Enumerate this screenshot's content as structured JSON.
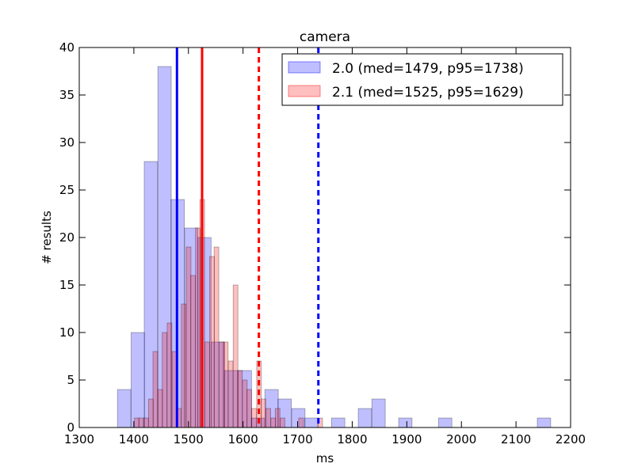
{
  "chart_data": {
    "type": "histogram",
    "title": "camera",
    "xlabel": "ms",
    "ylabel": "# results",
    "xlim": [
      1300,
      2200
    ],
    "ylim": [
      0,
      40
    ],
    "x_ticks": [
      1300,
      1400,
      1500,
      1600,
      1700,
      1800,
      1900,
      2000,
      2100,
      2200
    ],
    "y_ticks": [
      0,
      5,
      10,
      15,
      20,
      25,
      30,
      35,
      40
    ],
    "grid": false,
    "legend_position": "top-right",
    "series": [
      {
        "name": "2.0 (med=1479, p95=1738)",
        "color": "#0000ff",
        "bin_width": 24.5,
        "bins": [
          {
            "x0": 1370,
            "count": 4
          },
          {
            "x0": 1395,
            "count": 10
          },
          {
            "x0": 1419,
            "count": 28
          },
          {
            "x0": 1444,
            "count": 38
          },
          {
            "x0": 1468,
            "count": 24
          },
          {
            "x0": 1493,
            "count": 21
          },
          {
            "x0": 1517,
            "count": 20
          },
          {
            "x0": 1542,
            "count": 9
          },
          {
            "x0": 1566,
            "count": 6
          },
          {
            "x0": 1591,
            "count": 6
          },
          {
            "x0": 1615,
            "count": 1
          },
          {
            "x0": 1640,
            "count": 4
          },
          {
            "x0": 1664,
            "count": 3
          },
          {
            "x0": 1689,
            "count": 2
          },
          {
            "x0": 1713,
            "count": 1
          },
          {
            "x0": 1762,
            "count": 1
          },
          {
            "x0": 1811,
            "count": 2
          },
          {
            "x0": 1836,
            "count": 3
          },
          {
            "x0": 1885,
            "count": 1
          },
          {
            "x0": 1958,
            "count": 1
          },
          {
            "x0": 2139,
            "count": 1
          }
        ],
        "median": 1479,
        "p95": 1738
      },
      {
        "name": "2.1 (med=1525, p95=1629)",
        "color": "#ff0000",
        "bin_width": 8.6,
        "bins": [
          {
            "x0": 1401,
            "count": 1
          },
          {
            "x0": 1409,
            "count": 1
          },
          {
            "x0": 1418,
            "count": 1
          },
          {
            "x0": 1427,
            "count": 3
          },
          {
            "x0": 1435,
            "count": 8
          },
          {
            "x0": 1444,
            "count": 4
          },
          {
            "x0": 1452,
            "count": 10
          },
          {
            "x0": 1461,
            "count": 11
          },
          {
            "x0": 1470,
            "count": 8
          },
          {
            "x0": 1478,
            "count": 2
          },
          {
            "x0": 1487,
            "count": 13
          },
          {
            "x0": 1496,
            "count": 19
          },
          {
            "x0": 1504,
            "count": 16
          },
          {
            "x0": 1513,
            "count": 21
          },
          {
            "x0": 1521,
            "count": 24
          },
          {
            "x0": 1530,
            "count": 9
          },
          {
            "x0": 1539,
            "count": 18
          },
          {
            "x0": 1547,
            "count": 19
          },
          {
            "x0": 1556,
            "count": 9
          },
          {
            "x0": 1564,
            "count": 9
          },
          {
            "x0": 1573,
            "count": 7
          },
          {
            "x0": 1582,
            "count": 15
          },
          {
            "x0": 1590,
            "count": 6
          },
          {
            "x0": 1599,
            "count": 5
          },
          {
            "x0": 1607,
            "count": 4
          },
          {
            "x0": 1616,
            "count": 2
          },
          {
            "x0": 1625,
            "count": 7
          },
          {
            "x0": 1633,
            "count": 3
          },
          {
            "x0": 1642,
            "count": 2
          },
          {
            "x0": 1651,
            "count": 1
          },
          {
            "x0": 1659,
            "count": 2
          },
          {
            "x0": 1668,
            "count": 1
          },
          {
            "x0": 1702,
            "count": 1
          },
          {
            "x0": 1737,
            "count": 1
          }
        ],
        "median": 1525,
        "p95": 1629
      }
    ]
  }
}
